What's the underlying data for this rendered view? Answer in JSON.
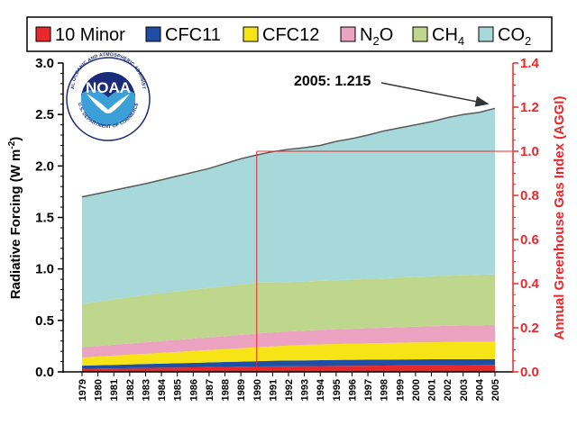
{
  "chart_data": {
    "type": "area",
    "stacked": true,
    "categories": [
      "1979",
      "1980",
      "1981",
      "1982",
      "1983",
      "1984",
      "1985",
      "1986",
      "1987",
      "1988",
      "1989",
      "1990",
      "1991",
      "1992",
      "1993",
      "1994",
      "1995",
      "1996",
      "1997",
      "1998",
      "1999",
      "2000",
      "2001",
      "2002",
      "2003",
      "2004",
      "2005"
    ],
    "series": [
      {
        "name": "10 Minor",
        "color": "#e8282b",
        "values": [
          0.03,
          0.032,
          0.034,
          0.036,
          0.038,
          0.04,
          0.042,
          0.044,
          0.046,
          0.048,
          0.05,
          0.052,
          0.054,
          0.055,
          0.056,
          0.057,
          0.058,
          0.059,
          0.06,
          0.061,
          0.062,
          0.063,
          0.064,
          0.065,
          0.066,
          0.067,
          0.068
        ]
      },
      {
        "name": "CFC11",
        "color": "#1f4fa5",
        "values": [
          0.03,
          0.032,
          0.034,
          0.036,
          0.038,
          0.04,
          0.042,
          0.044,
          0.046,
          0.048,
          0.05,
          0.052,
          0.054,
          0.055,
          0.056,
          0.057,
          0.058,
          0.058,
          0.058,
          0.058,
          0.058,
          0.058,
          0.058,
          0.058,
          0.057,
          0.057,
          0.057
        ]
      },
      {
        "name": "CFC12",
        "color": "#f7e417",
        "values": [
          0.08,
          0.085,
          0.09,
          0.095,
          0.1,
          0.105,
          0.11,
          0.115,
          0.12,
          0.125,
          0.13,
          0.135,
          0.14,
          0.145,
          0.15,
          0.153,
          0.155,
          0.157,
          0.159,
          0.161,
          0.163,
          0.165,
          0.166,
          0.167,
          0.168,
          0.168,
          0.169
        ]
      },
      {
        "name": "N2O",
        "color": "#eba3c1",
        "values": [
          0.1,
          0.103,
          0.106,
          0.109,
          0.112,
          0.115,
          0.118,
          0.121,
          0.124,
          0.127,
          0.13,
          0.133,
          0.136,
          0.137,
          0.139,
          0.141,
          0.143,
          0.145,
          0.147,
          0.149,
          0.151,
          0.153,
          0.155,
          0.157,
          0.159,
          0.161,
          0.163
        ]
      },
      {
        "name": "CH4",
        "color": "#bfd68d",
        "values": [
          0.42,
          0.43,
          0.44,
          0.45,
          0.46,
          0.465,
          0.47,
          0.475,
          0.48,
          0.485,
          0.49,
          0.495,
          0.485,
          0.48,
          0.477,
          0.476,
          0.476,
          0.477,
          0.478,
          0.48,
          0.482,
          0.484,
          0.486,
          0.487,
          0.488,
          0.49,
          0.491
        ]
      },
      {
        "name": "CO2",
        "color": "#a7d8da",
        "values": [
          1.04,
          1.05,
          1.06,
          1.07,
          1.08,
          1.1,
          1.12,
          1.14,
          1.16,
          1.19,
          1.22,
          1.24,
          1.27,
          1.29,
          1.3,
          1.316,
          1.349,
          1.37,
          1.398,
          1.431,
          1.454,
          1.477,
          1.501,
          1.536,
          1.562,
          1.577,
          1.612
        ]
      }
    ],
    "legend": {
      "position": "top",
      "entries": [
        {
          "label": "10 Minor",
          "color": "#e8282b"
        },
        {
          "label": "CFC11",
          "color": "#1f4fa5"
        },
        {
          "label": "CFC12",
          "color": "#f7e417"
        },
        {
          "label": "N",
          "sub": "2",
          "suffix": "O",
          "color": "#eba3c1"
        },
        {
          "label": "CH",
          "sub": "4",
          "suffix": "",
          "color": "#bfd68d"
        },
        {
          "label": "CO",
          "sub": "2",
          "suffix": "",
          "color": "#a7d8da"
        }
      ]
    },
    "y_left": {
      "label": "Radiative Forcing (W m",
      "label_sup": "-2",
      "label_end": ")",
      "min": 0,
      "max": 3.0,
      "ticks": [
        "0.0",
        "0.5",
        "1.0",
        "1.5",
        "2.0",
        "2.5",
        "3.0"
      ]
    },
    "y_right": {
      "label": "Annual Greenhouse Gas Index (AGGI)",
      "min": 0,
      "max": 1.4,
      "ticks": [
        "0.0",
        "0.2",
        "0.4",
        "0.6",
        "0.8",
        "1.0",
        "1.2",
        "1.4"
      ],
      "color": "#e8282b"
    },
    "reference": {
      "year": "1990",
      "aggi": 1.0
    },
    "annotation": {
      "text": "2005: 1.215",
      "year": "2005"
    },
    "grid": false
  },
  "logo": {
    "text": "NOAA",
    "ring_top": "NATIONAL OCEANIC AND ATMOSPHERIC ADMINISTRATION",
    "ring_bottom": "U.S. DEPARTMENT OF COMMERCE"
  }
}
